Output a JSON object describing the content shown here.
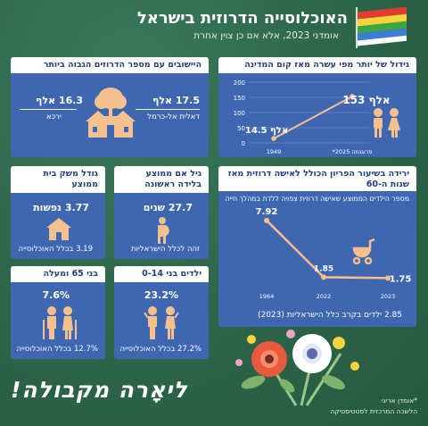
{
  "header": {
    "title": "האוכלוסייה הדרוזית בישראל",
    "subtitle": "אומדני 2023, אלא אם כן צוין אחרת"
  },
  "colors": {
    "background": "#2f6a4f",
    "card": "#3f66b0",
    "header_text": "#1f3f80",
    "icon": "#f4c18e",
    "line": "#f4c18e",
    "flag_stripes": [
      "#e03c31",
      "#f7d43a",
      "#3aa845",
      "#3e7dd6",
      "#ffffff"
    ]
  },
  "settlements": {
    "title": "היישובים עם מספר הדרוזים הגבוה ביותר",
    "right_value": "17.5 אלף",
    "right_name": "דאלית אל-כרמל",
    "left_value": "16.3 אלף",
    "left_name": "ירכא",
    "icon": "village-icon"
  },
  "growth": {
    "title": "גידול של יותר מפי עשרה מאז קום המדינה",
    "label_1949": "14.5 אלף",
    "label_2025": "153 אלף",
    "footnote_2025": "*פרוגנוזה 2025",
    "icon": "people-icon"
  },
  "household": {
    "title": "גודל משק בית ממוצע",
    "value": "3.77 נפשות",
    "comparison": "3.19 בכלל האוכלוסייה",
    "icon": "house-icon"
  },
  "mother_age": {
    "title": "גיל אם ממוצע בלידה ראשונה",
    "value": "27.7 שנים",
    "comparison": "זהה לכלל הישראליות",
    "icon": "pregnant-woman-icon"
  },
  "fertility": {
    "title": "ירידה בשיעור הפריון הכולל לאישה דרוזית מאז שנות ה-60",
    "subtitle": "מספר הילדים הממוצע שאישה דרוזית צפויה ללדת במהלך חייה",
    "footer": "2.85 ילדים בקרב כלל הישראליות (2023)",
    "icon": "stroller-icon"
  },
  "elderly": {
    "title": "בני 65 ומעלה",
    "value": "7.6%",
    "comparison": "12.7% בכלל האוכלוסייה",
    "icon": "elderly-couple-icon"
  },
  "children": {
    "title": "ילדים בני 0-14",
    "value": "23.2%",
    "comparison": "27.2% בכלל האוכלוסייה",
    "icon": "children-icon"
  },
  "footer": {
    "welcome": "ליאָרה מקבולה!",
    "source_1": "*אומדן אריגי",
    "source_2": "הלשכה המרכזית לסטטיסטיקה",
    "icon": "flower-bouquet-icon"
  },
  "chart_data": [
    {
      "type": "line",
      "title": "גידול של יותר מפי עשרה מאז קום המדינה",
      "x": [
        "1949",
        "*פרוגנוזה 2025"
      ],
      "series": [
        {
          "values": [
            14.5,
            153
          ]
        }
      ],
      "data_labels": [
        "14.5 אלף",
        "153 אלף"
      ],
      "ylim": [
        0,
        200
      ],
      "yticks": [
        0,
        50,
        100,
        150,
        200
      ],
      "grid": true
    },
    {
      "type": "line",
      "title": "ירידה בשיעור הפריון הכולל לאישה דרוזית מאז שנות ה-60",
      "subtitle": "מספר הילדים הממוצע שאישה דרוזית צפויה ללדת במהלך חייה",
      "x": [
        "1964",
        "2022",
        "2023"
      ],
      "series": [
        {
          "values": [
            7.92,
            1.85,
            1.75
          ]
        }
      ],
      "data_labels": [
        "7.92",
        "1.85",
        "1.75"
      ],
      "grid": false
    }
  ]
}
